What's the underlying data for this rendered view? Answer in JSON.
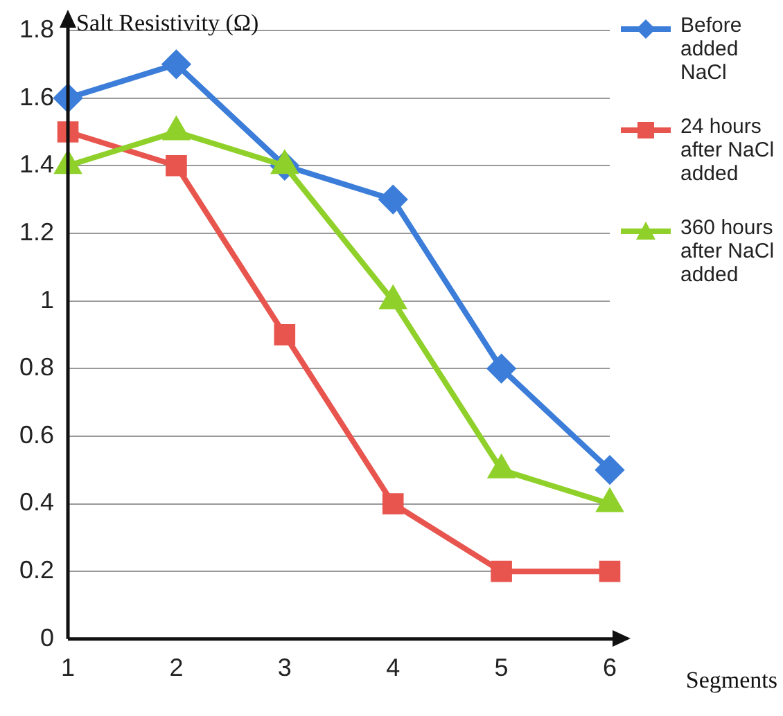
{
  "chart_data": {
    "type": "line",
    "ylabel": "Salt Resistivity (Ω)",
    "xlabel": "Segments",
    "categories": [
      "1",
      "2",
      "3",
      "4",
      "5",
      "6"
    ],
    "series": [
      {
        "name": "Before added NaCl",
        "color": "#3b7dd8",
        "marker": "diamond",
        "values": [
          1.6,
          1.7,
          1.4,
          1.3,
          0.8,
          0.5
        ]
      },
      {
        "name": "24 hours after NaCl added",
        "color": "#e8554e",
        "marker": "square",
        "values": [
          1.5,
          1.4,
          0.9,
          0.4,
          0.2,
          0.2
        ]
      },
      {
        "name": "360 hours after NaCl added",
        "color": "#8fd12a",
        "marker": "triangle",
        "values": [
          1.4,
          1.5,
          1.4,
          1.0,
          0.5,
          0.4
        ]
      }
    ],
    "ylim": [
      0,
      1.8
    ],
    "yticks": [
      0,
      0.2,
      0.4,
      0.6,
      0.8,
      1,
      1.2,
      1.4,
      1.6,
      1.8
    ],
    "grid": "y",
    "legend": "right",
    "line_style": "solid"
  }
}
